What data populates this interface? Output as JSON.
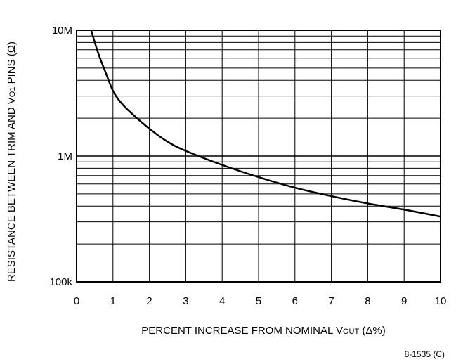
{
  "chart_data": {
    "type": "line",
    "ylabel": {
      "main": "RESISTANCE BETWEEN TRIM AND V",
      "sub": "O1",
      "rest": " PINS (Ω)"
    },
    "xlabel": {
      "main": "PERCENT INCREASE FROM NOMINAL V",
      "sub": "OUT",
      "rest": " (Δ%)"
    },
    "x_tick_labels": [
      "0",
      "1",
      "2",
      "3",
      "4",
      "5",
      "6",
      "7",
      "8",
      "9",
      "10"
    ],
    "y_tick_labels": [
      "100k",
      "1M",
      "10M"
    ],
    "xlim": [
      0,
      10
    ],
    "ylim": [
      100000,
      10000000
    ],
    "y_scale": "log",
    "grid": true,
    "series": [
      {
        "x": [
          0.4,
          0.6,
          0.8,
          1.0,
          1.2,
          1.5,
          2.0,
          2.5,
          3.0,
          4.0,
          5.0,
          6.0,
          7.0,
          8.0,
          9.0,
          10.0
        ],
        "y": [
          10000000,
          6500000,
          4600000,
          3300000,
          2700000,
          2200000,
          1650000,
          1300000,
          1100000,
          850000,
          680000,
          560000,
          480000,
          420000,
          375000,
          330000
        ]
      }
    ]
  },
  "figure_id": "8-1535 (C)"
}
